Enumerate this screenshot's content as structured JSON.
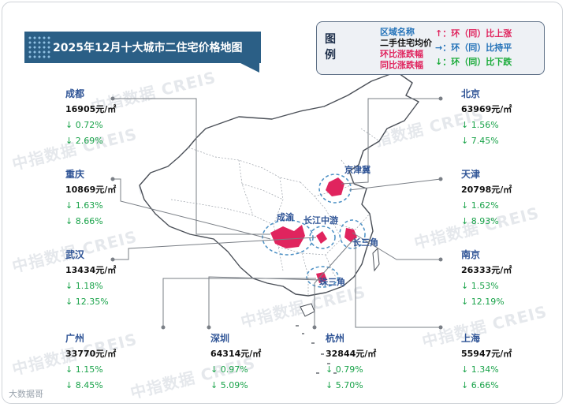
{
  "title": "2025年12月十大城市二住宅价格地图",
  "legend": {
    "label": "图例",
    "names": [
      "区域名称",
      "二手住宅均价",
      "环比涨跌幅",
      "同比涨跌幅"
    ],
    "trend": [
      {
        "arrow": "↑",
        "text": "：环（同）比上涨",
        "color": "#e0245e"
      },
      {
        "arrow": "→",
        "text": "：环（同）比持平",
        "color": "#2271b8"
      },
      {
        "arrow": "↓",
        "text": "：环（同）比下跌",
        "color": "#1aab3a"
      }
    ]
  },
  "cities": [
    {
      "id": "chengdu",
      "name": "成都",
      "price": "16905元/㎡",
      "mom": "↓ 0.72%",
      "yoy": "↓ 2.69%"
    },
    {
      "id": "chongqing",
      "name": "重庆",
      "price": "10869元/㎡",
      "mom": "↓ 1.63%",
      "yoy": "↓ 8.66%"
    },
    {
      "id": "wuhan",
      "name": "武汉",
      "price": "13434元/㎡",
      "mom": "↓ 1.18%",
      "yoy": "↓ 12.35%"
    },
    {
      "id": "guangzhou",
      "name": "广州",
      "price": "33770元/㎡",
      "mom": "↓ 1.15%",
      "yoy": "↓ 8.45%"
    },
    {
      "id": "shenzhen",
      "name": "深圳",
      "price": "64314元/㎡",
      "mom": "↓ 0.97%",
      "yoy": "↓ 5.09%"
    },
    {
      "id": "hangzhou",
      "name": "杭州",
      "price": "32844元/㎡",
      "mom": "↓ 0.79%",
      "yoy": "↓ 5.70%"
    },
    {
      "id": "shanghai",
      "name": "上海",
      "price": "55947元/㎡",
      "mom": "↓ 1.34%",
      "yoy": "↓ 6.66%"
    },
    {
      "id": "nanjing",
      "name": "南京",
      "price": "26333元/㎡",
      "mom": "↓ 1.53%",
      "yoy": "↓ 12.19%"
    },
    {
      "id": "tianjin",
      "name": "天津",
      "price": "20798元/㎡",
      "mom": "↓ 1.62%",
      "yoy": "↓ 8.93%"
    },
    {
      "id": "beijing",
      "name": "北京",
      "price": "63969元/㎡",
      "mom": "↓ 1.56%",
      "yoy": "↓ 7.45%"
    }
  ],
  "regions": {
    "jingjinji": "京津冀",
    "chengyu": "成渝",
    "changjiang": "长江中游",
    "changsanjiao": "长三角",
    "zhusanjiao": "珠三角"
  },
  "watermark": "中指数据 CREIS",
  "brand": "大数据哥",
  "colors": {
    "title_bg": "#2b5f86",
    "highlight": "#e0245e",
    "down": "#1aa34a",
    "region_border": "#4a8fc4"
  }
}
